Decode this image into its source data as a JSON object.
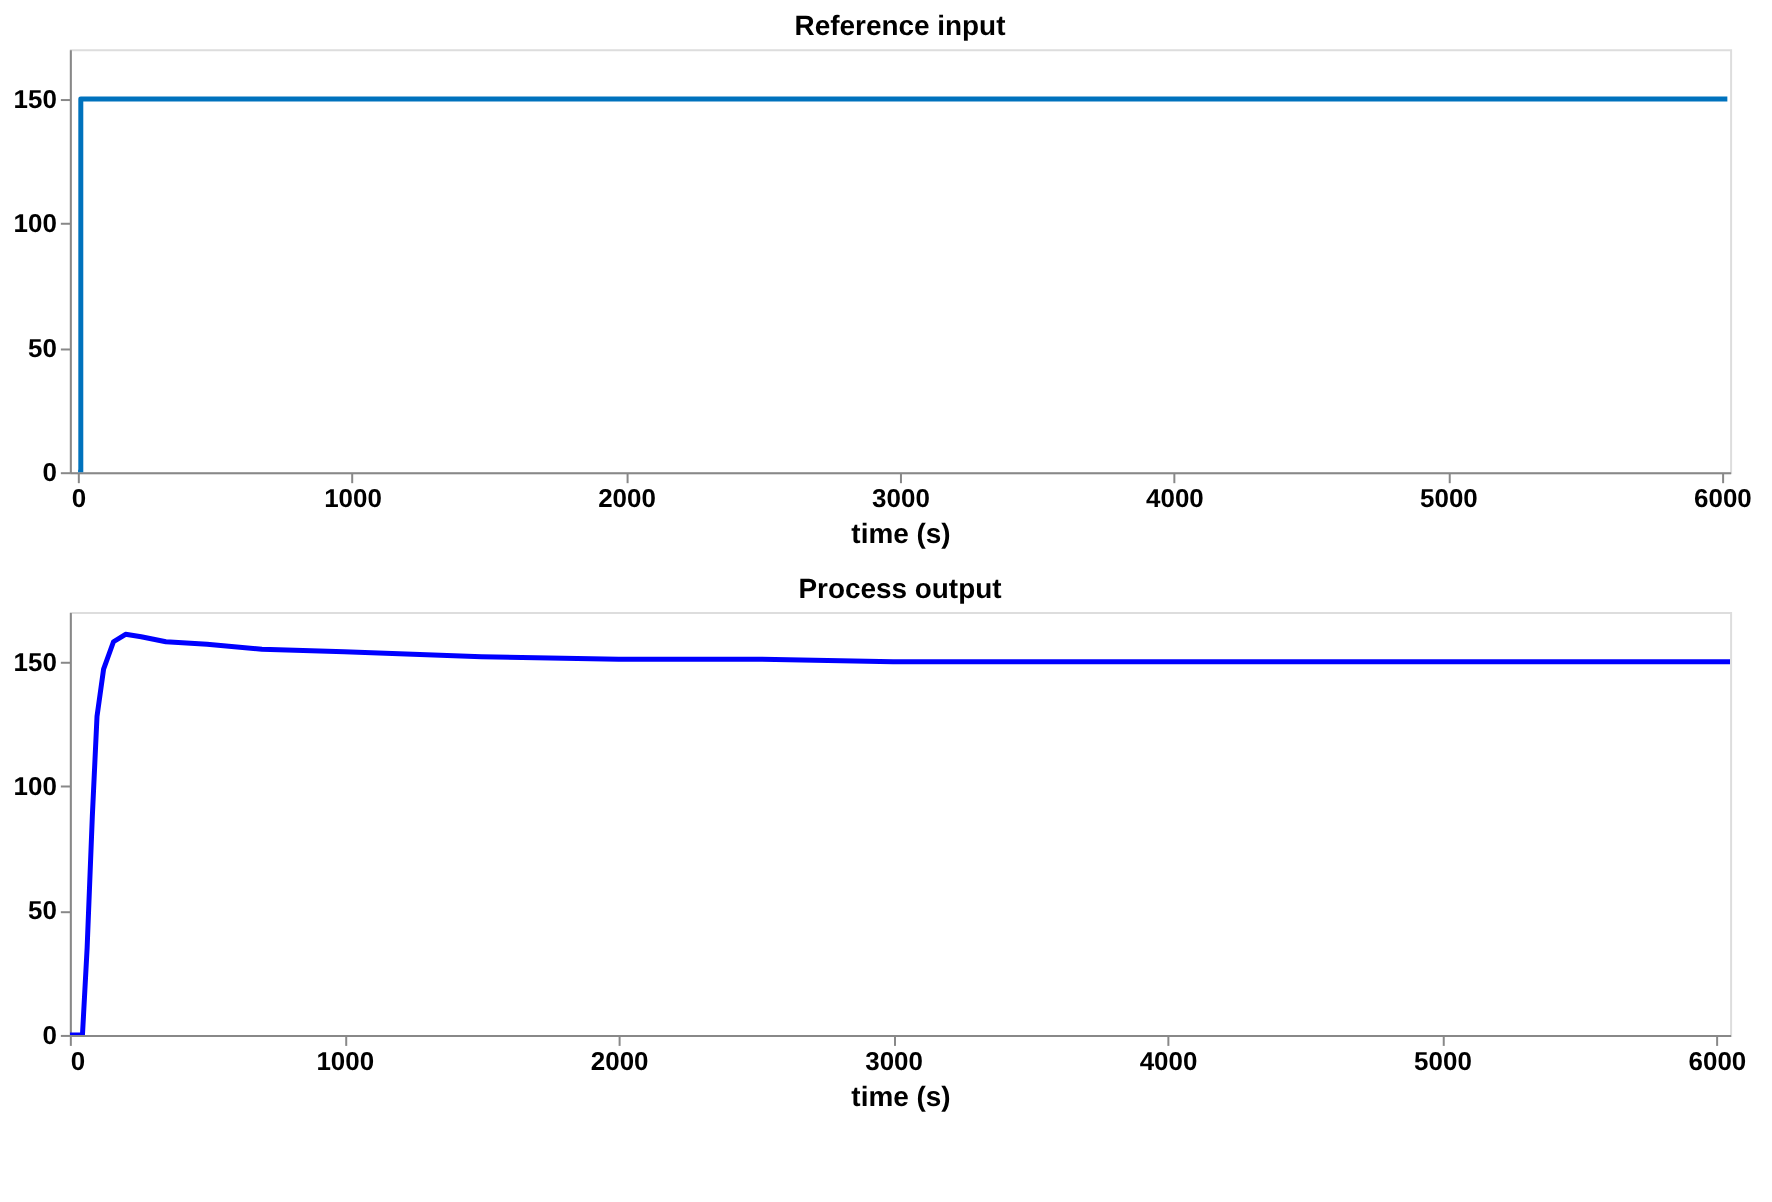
{
  "chart_data": [
    {
      "type": "step",
      "title": "Reference input",
      "xlabel": "time (s)",
      "x": [
        0,
        10,
        6020
      ],
      "series": [
        {
          "color": "#0072bd",
          "values": [
            0,
            150,
            150
          ]
        }
      ],
      "xlim": [
        -30,
        6030
      ],
      "xticks": [
        0,
        1000,
        2000,
        3000,
        4000,
        5000,
        6000
      ],
      "ylim": [
        0,
        170
      ],
      "yticks": [
        0,
        50,
        100,
        150
      ],
      "grid": false
    },
    {
      "type": "line",
      "title": "Process output",
      "xlabel": "time (s)",
      "x": [
        0,
        46,
        63,
        82,
        99,
        123,
        159,
        203,
        260,
        350,
        500,
        700,
        1000,
        1500,
        2000,
        2500,
        3000,
        4000,
        5000,
        6050
      ],
      "series": [
        {
          "color": "#0000ff",
          "values": [
            0,
            0,
            35,
            88,
            128,
            147,
            158,
            161,
            160,
            158,
            157,
            155,
            154,
            152,
            151,
            151,
            150,
            150,
            150,
            150
          ]
        }
      ],
      "xlim": [
        0,
        6050
      ],
      "xticks": [
        0,
        1000,
        2000,
        3000,
        4000,
        5000,
        6000
      ],
      "ylim": [
        0,
        170
      ],
      "yticks": [
        0,
        50,
        100,
        150
      ],
      "grid": false
    }
  ]
}
